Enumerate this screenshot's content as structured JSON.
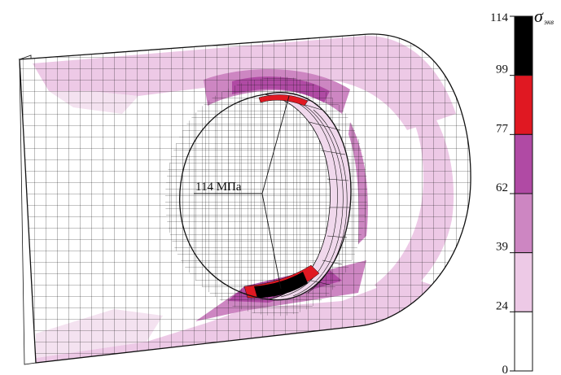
{
  "annotation": {
    "label": "114 МПа"
  },
  "legend": {
    "symbol": "σ",
    "subscript": "экв",
    "ticks": [
      "114",
      "99",
      "77",
      "62",
      "39",
      "24",
      "0"
    ],
    "bands": [
      {
        "from": 99,
        "to": 114,
        "color": "#000000"
      },
      {
        "from": 77,
        "to": 99,
        "color": "#e01822"
      },
      {
        "from": 62,
        "to": 77,
        "color": "#b04aa4"
      },
      {
        "from": 39,
        "to": 62,
        "color": "#cd86c2"
      },
      {
        "from": 24,
        "to": 39,
        "color": "#edc9e6"
      },
      {
        "from": 0,
        "to": 24,
        "color": "#ffffff"
      }
    ]
  },
  "colors": {
    "mesh_line": "#111111",
    "very_low": "#f4e2f0",
    "low": "#edc9e6",
    "mid": "#cd86c2",
    "high": "#b04aa4",
    "peak": "#e01822",
    "max": "#000000"
  }
}
